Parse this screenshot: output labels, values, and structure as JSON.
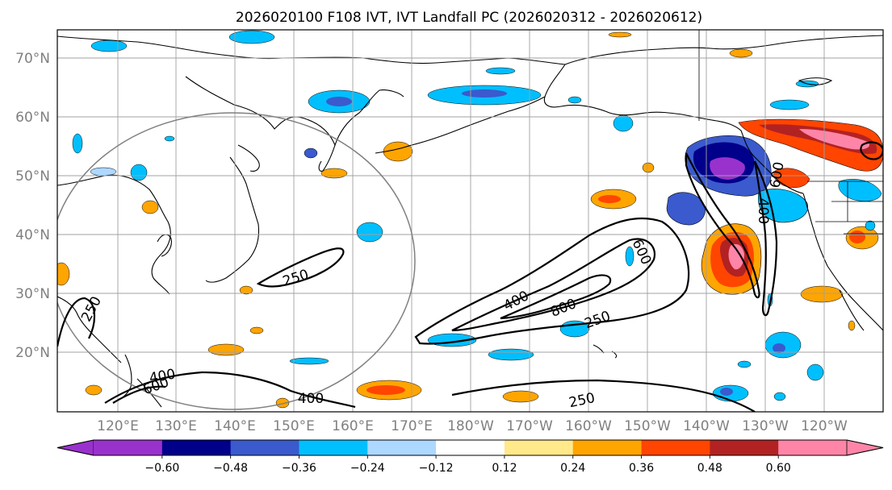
{
  "title": "2026020100 F108 IVT, IVT Landfall PC (2026020312 - 2026020612)",
  "map": {
    "lat_labels": [
      "70°N",
      "60°N",
      "50°N",
      "40°N",
      "30°N",
      "20°N"
    ],
    "lon_labels": [
      "120°E",
      "130°E",
      "140°E",
      "150°E",
      "160°E",
      "170°E",
      "180°W",
      "170°W",
      "160°W",
      "150°W",
      "140°W",
      "130°W",
      "120°W"
    ]
  },
  "contours": {
    "labels": [
      "250",
      "250",
      "250",
      "250",
      "400",
      "400",
      "400",
      "600",
      "800",
      "600",
      "400",
      "600"
    ]
  },
  "colorbar": {
    "ticks": [
      "−0.60",
      "−0.48",
      "−0.36",
      "−0.24",
      "−0.12",
      "0.12",
      "0.24",
      "0.36",
      "0.48",
      "0.60"
    ],
    "colors": [
      "#9932cc",
      "#00008b",
      "#3a5acd",
      "#00bfff",
      "#add8ff",
      "#ffffff",
      "#ffe98a",
      "#ffa500",
      "#ff4500",
      "#b22222",
      "#ff85a8",
      "#ff85a8"
    ]
  }
}
